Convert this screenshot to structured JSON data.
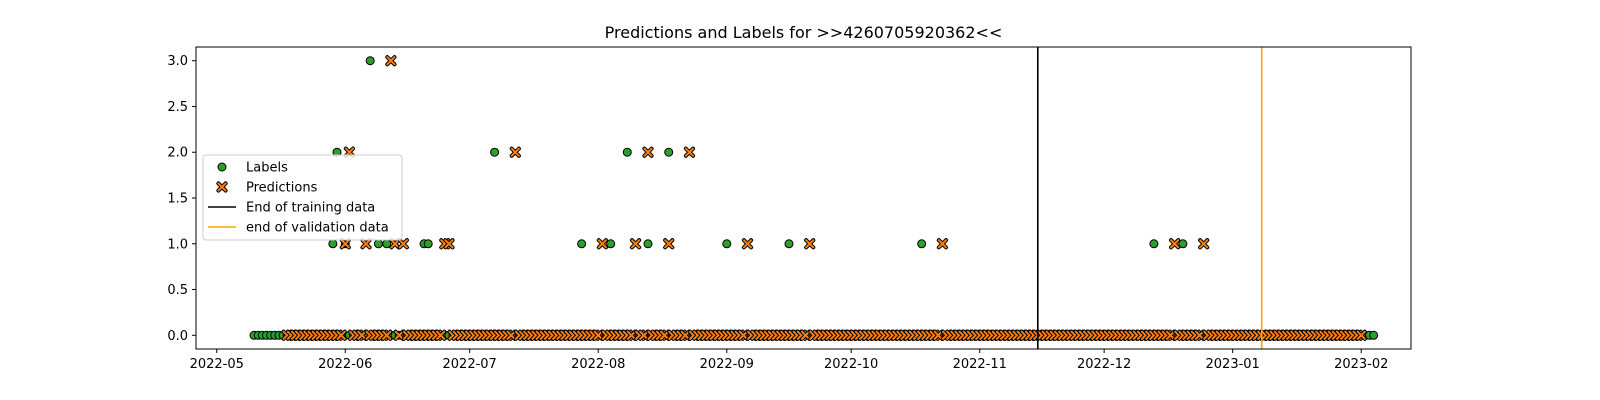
{
  "chart_data": {
    "type": "scatter",
    "title": "Predictions and Labels for >>4260705920362<<",
    "xlabel": "",
    "ylabel": "",
    "x_range": [
      "2022-04-26",
      "2023-02-13"
    ],
    "ylim": [
      -0.15,
      3.15
    ],
    "grid": false,
    "legend_position": "center-left",
    "y_ticks": [
      0.0,
      0.5,
      1.0,
      1.5,
      2.0,
      2.5,
      3.0
    ],
    "y_tick_labels": [
      "0.0",
      "0.5",
      "1.0",
      "1.5",
      "2.0",
      "2.5",
      "3.0"
    ],
    "x_ticks": [
      "2022-05-01",
      "2022-06-01",
      "2022-07-01",
      "2022-08-01",
      "2022-09-01",
      "2022-10-01",
      "2022-11-01",
      "2022-12-01",
      "2023-01-01",
      "2023-02-01"
    ],
    "x_tick_labels": [
      "2022-05",
      "2022-06",
      "2022-07",
      "2022-08",
      "2022-09",
      "2022-10",
      "2022-11",
      "2022-12",
      "2023-01",
      "2023-02"
    ],
    "series": [
      {
        "name": "Labels",
        "marker": "circle",
        "color": "#2ca02c",
        "zero_range": [
          "2022-05-10",
          "2023-02-04"
        ],
        "nonzero": [
          {
            "x": "2022-05-29",
            "y": 1
          },
          {
            "x": "2022-05-30",
            "y": 2
          },
          {
            "x": "2022-06-01",
            "y": 1
          },
          {
            "x": "2022-06-07",
            "y": 3
          },
          {
            "x": "2022-06-09",
            "y": 1
          },
          {
            "x": "2022-06-11",
            "y": 1
          },
          {
            "x": "2022-06-20",
            "y": 1
          },
          {
            "x": "2022-06-21",
            "y": 1
          },
          {
            "x": "2022-07-07",
            "y": 2
          },
          {
            "x": "2022-07-28",
            "y": 1
          },
          {
            "x": "2022-08-04",
            "y": 1
          },
          {
            "x": "2022-08-08",
            "y": 2
          },
          {
            "x": "2022-08-13",
            "y": 1
          },
          {
            "x": "2022-08-18",
            "y": 2
          },
          {
            "x": "2022-09-01",
            "y": 1
          },
          {
            "x": "2022-09-16",
            "y": 1
          },
          {
            "x": "2022-10-18",
            "y": 1
          },
          {
            "x": "2022-12-13",
            "y": 1
          },
          {
            "x": "2022-12-20",
            "y": 1
          }
        ]
      },
      {
        "name": "Predictions",
        "marker": "x",
        "color": "#ff7f0e",
        "zero_range": [
          "2022-05-18",
          "2023-02-01"
        ],
        "nonzero": [
          {
            "x": "2022-06-01",
            "y": 1
          },
          {
            "x": "2022-06-02",
            "y": 2
          },
          {
            "x": "2022-06-06",
            "y": 1
          },
          {
            "x": "2022-06-12",
            "y": 3
          },
          {
            "x": "2022-06-13",
            "y": 1
          },
          {
            "x": "2022-06-15",
            "y": 1
          },
          {
            "x": "2022-06-25",
            "y": 1
          },
          {
            "x": "2022-06-26",
            "y": 1
          },
          {
            "x": "2022-07-12",
            "y": 2
          },
          {
            "x": "2022-08-02",
            "y": 1
          },
          {
            "x": "2022-08-10",
            "y": 1
          },
          {
            "x": "2022-08-13",
            "y": 2
          },
          {
            "x": "2022-08-18",
            "y": 1
          },
          {
            "x": "2022-08-23",
            "y": 2
          },
          {
            "x": "2022-09-06",
            "y": 1
          },
          {
            "x": "2022-09-21",
            "y": 1
          },
          {
            "x": "2022-10-23",
            "y": 1
          },
          {
            "x": "2022-12-18",
            "y": 1
          },
          {
            "x": "2022-12-25",
            "y": 1
          }
        ]
      }
    ],
    "vlines": [
      {
        "name": "End of training data",
        "x": "2022-11-15",
        "color": "#000000"
      },
      {
        "name": "end of validation data",
        "x": "2023-01-08",
        "color": "#ffa500"
      }
    ],
    "legend": [
      "Labels",
      "Predictions",
      "End of training data",
      "end of validation data"
    ]
  }
}
